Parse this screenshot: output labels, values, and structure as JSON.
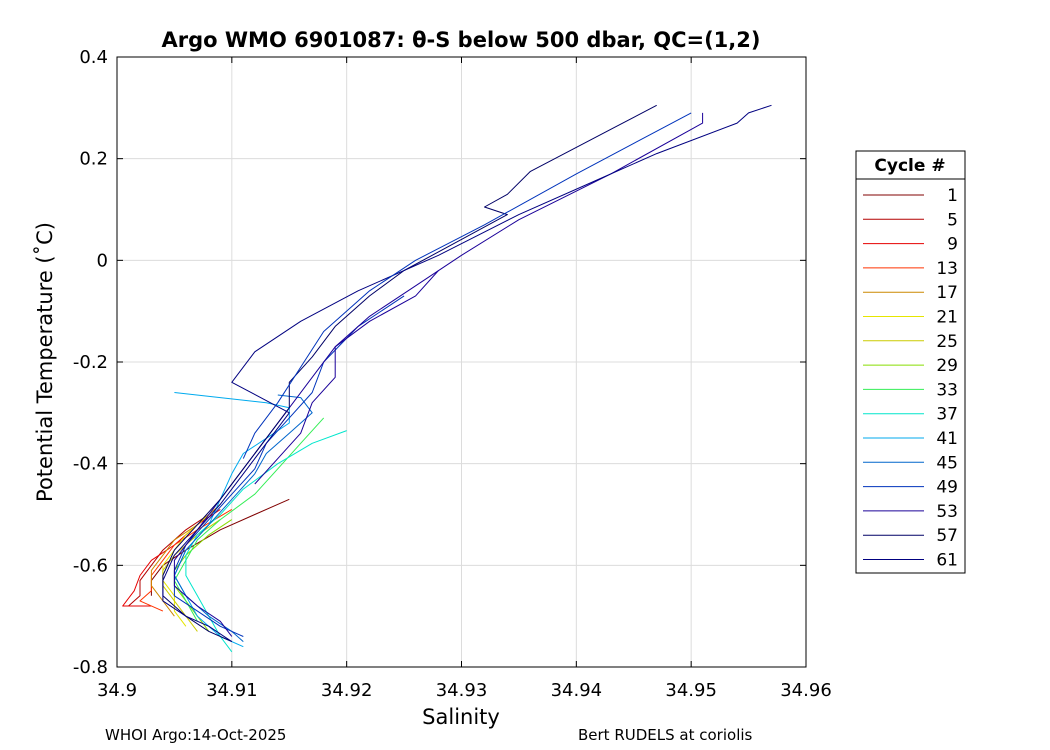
{
  "chart_data": {
    "type": "line",
    "title": "Argo WMO 6901087: θ-S below 500 dbar,  QC=(1,2)",
    "xlabel": "Salinity",
    "ylabel": "Potential Temperature (˚C)",
    "xlim": [
      34.9,
      34.96
    ],
    "ylim": [
      -0.8,
      0.4
    ],
    "xticks": [
      "34.9",
      "34.91",
      "34.92",
      "34.93",
      "34.94",
      "34.95",
      "34.96"
    ],
    "yticks": [
      "-0.8",
      "-0.6",
      "-0.4",
      "-0.2",
      "0",
      "0.2",
      "0.4"
    ],
    "grid": true,
    "legend": {
      "title": "Cycle #",
      "placement": "right",
      "entries": [
        {
          "label": "1",
          "color": "#800000"
        },
        {
          "label": "5",
          "color": "#b30000"
        },
        {
          "label": "9",
          "color": "#e60000"
        },
        {
          "label": "13",
          "color": "#ff3300"
        },
        {
          "label": "17",
          "color": "#cc8800"
        },
        {
          "label": "21",
          "color": "#e6e600"
        },
        {
          "label": "25",
          "color": "#cccc00"
        },
        {
          "label": "29",
          "color": "#88dd00"
        },
        {
          "label": "33",
          "color": "#33ee55"
        },
        {
          "label": "37",
          "color": "#00e6cc"
        },
        {
          "label": "41",
          "color": "#00aaee"
        },
        {
          "label": "45",
          "color": "#0066cc"
        },
        {
          "label": "49",
          "color": "#0033bb"
        },
        {
          "label": "53",
          "color": "#1a0099"
        },
        {
          "label": "57",
          "color": "#000066"
        },
        {
          "label": "61",
          "color": "#000080"
        }
      ]
    },
    "series": [
      {
        "color": "#800000",
        "points": [
          [
            34.915,
            -0.47
          ],
          [
            34.912,
            -0.5
          ],
          [
            34.909,
            -0.53
          ],
          [
            34.906,
            -0.57
          ],
          [
            34.904,
            -0.6
          ],
          [
            34.903,
            -0.63
          ],
          [
            34.903,
            -0.66
          ]
        ]
      },
      {
        "color": "#b30000",
        "points": [
          [
            34.908,
            -0.5
          ],
          [
            34.906,
            -0.53
          ],
          [
            34.904,
            -0.57
          ],
          [
            34.903,
            -0.6
          ],
          [
            34.902,
            -0.63
          ],
          [
            34.902,
            -0.66
          ],
          [
            34.901,
            -0.68
          ]
        ]
      },
      {
        "color": "#e60000",
        "points": [
          [
            34.909,
            -0.49
          ],
          [
            34.907,
            -0.52
          ],
          [
            34.905,
            -0.56
          ],
          [
            34.903,
            -0.59
          ],
          [
            34.902,
            -0.62
          ],
          [
            34.9015,
            -0.65
          ],
          [
            34.9005,
            -0.68
          ],
          [
            34.903,
            -0.68
          ]
        ]
      },
      {
        "color": "#ff3300",
        "points": [
          [
            34.91,
            -0.49
          ],
          [
            34.907,
            -0.53
          ],
          [
            34.905,
            -0.56
          ],
          [
            34.904,
            -0.59
          ],
          [
            34.903,
            -0.62
          ],
          [
            34.903,
            -0.65
          ],
          [
            34.902,
            -0.67
          ],
          [
            34.904,
            -0.69
          ]
        ]
      },
      {
        "color": "#cc8800",
        "points": [
          [
            34.909,
            -0.48
          ],
          [
            34.907,
            -0.52
          ],
          [
            34.905,
            -0.55
          ],
          [
            34.904,
            -0.58
          ],
          [
            34.903,
            -0.61
          ],
          [
            34.903,
            -0.64
          ],
          [
            34.904,
            -0.67
          ],
          [
            34.905,
            -0.7
          ]
        ]
      },
      {
        "color": "#e6e600",
        "points": [
          [
            34.908,
            -0.5
          ],
          [
            34.906,
            -0.54
          ],
          [
            34.905,
            -0.57
          ],
          [
            34.904,
            -0.6
          ],
          [
            34.904,
            -0.63
          ],
          [
            34.905,
            -0.66
          ],
          [
            34.905,
            -0.69
          ],
          [
            34.906,
            -0.72
          ]
        ]
      },
      {
        "color": "#cccc00",
        "points": [
          [
            34.909,
            -0.51
          ],
          [
            34.907,
            -0.54
          ],
          [
            34.905,
            -0.58
          ],
          [
            34.904,
            -0.61
          ],
          [
            34.904,
            -0.64
          ],
          [
            34.905,
            -0.67
          ],
          [
            34.906,
            -0.7
          ],
          [
            34.907,
            -0.73
          ]
        ]
      },
      {
        "color": "#88dd00",
        "points": [
          [
            34.91,
            -0.51
          ],
          [
            34.908,
            -0.54
          ],
          [
            34.906,
            -0.58
          ],
          [
            34.905,
            -0.61
          ],
          [
            34.905,
            -0.64
          ],
          [
            34.906,
            -0.67
          ],
          [
            34.907,
            -0.7
          ],
          [
            34.908,
            -0.73
          ]
        ]
      },
      {
        "color": "#33ee55",
        "points": [
          [
            34.918,
            -0.31
          ],
          [
            34.916,
            -0.36
          ],
          [
            34.914,
            -0.41
          ],
          [
            34.912,
            -0.46
          ],
          [
            34.909,
            -0.51
          ],
          [
            34.907,
            -0.55
          ],
          [
            34.906,
            -0.59
          ],
          [
            34.905,
            -0.63
          ],
          [
            34.906,
            -0.67
          ],
          [
            34.907,
            -0.71
          ]
        ]
      },
      {
        "color": "#00e6cc",
        "points": [
          [
            34.92,
            -0.335
          ],
          [
            34.917,
            -0.36
          ],
          [
            34.914,
            -0.4
          ],
          [
            34.911,
            -0.45
          ],
          [
            34.909,
            -0.5
          ],
          [
            34.907,
            -0.54
          ],
          [
            34.906,
            -0.58
          ],
          [
            34.906,
            -0.62
          ],
          [
            34.907,
            -0.66
          ],
          [
            34.908,
            -0.7
          ],
          [
            34.909,
            -0.74
          ],
          [
            34.91,
            -0.77
          ]
        ]
      },
      {
        "color": "#00aaee",
        "points": [
          [
            34.905,
            -0.26
          ],
          [
            34.909,
            -0.27
          ],
          [
            34.913,
            -0.28
          ],
          [
            34.915,
            -0.29
          ],
          [
            34.915,
            -0.32
          ],
          [
            34.913,
            -0.35
          ],
          [
            34.911,
            -0.38
          ],
          [
            34.91,
            -0.42
          ],
          [
            34.909,
            -0.47
          ],
          [
            34.908,
            -0.52
          ],
          [
            34.906,
            -0.57
          ],
          [
            34.905,
            -0.62
          ],
          [
            34.906,
            -0.66
          ],
          [
            34.907,
            -0.7
          ],
          [
            34.909,
            -0.74
          ],
          [
            34.911,
            -0.76
          ]
        ]
      },
      {
        "color": "#0066cc",
        "points": [
          [
            34.914,
            -0.265
          ],
          [
            34.916,
            -0.27
          ],
          [
            34.917,
            -0.3
          ],
          [
            34.915,
            -0.34
          ],
          [
            34.913,
            -0.38
          ],
          [
            34.912,
            -0.42
          ],
          [
            34.91,
            -0.47
          ],
          [
            34.908,
            -0.52
          ],
          [
            34.906,
            -0.57
          ],
          [
            34.905,
            -0.62
          ],
          [
            34.906,
            -0.66
          ],
          [
            34.908,
            -0.7
          ],
          [
            34.91,
            -0.73
          ],
          [
            34.911,
            -0.75
          ]
        ]
      },
      {
        "color": "#0033bb",
        "points": [
          [
            34.925,
            -0.07
          ],
          [
            34.921,
            -0.13
          ],
          [
            34.918,
            -0.2
          ],
          [
            34.917,
            -0.26
          ],
          [
            34.915,
            -0.31
          ],
          [
            34.913,
            -0.36
          ],
          [
            34.912,
            -0.41
          ],
          [
            34.91,
            -0.46
          ],
          [
            34.908,
            -0.51
          ],
          [
            34.906,
            -0.56
          ],
          [
            34.905,
            -0.61
          ],
          [
            34.905,
            -0.66
          ],
          [
            34.907,
            -0.69
          ],
          [
            34.909,
            -0.72
          ],
          [
            34.911,
            -0.74
          ]
        ]
      },
      {
        "color": "#1a0099",
        "points": [
          [
            34.951,
            0.29
          ],
          [
            34.951,
            0.27
          ],
          [
            34.943,
            0.17
          ],
          [
            34.935,
            0.08
          ],
          [
            34.93,
            0.01
          ],
          [
            34.926,
            -0.05
          ],
          [
            34.922,
            -0.11
          ],
          [
            34.919,
            -0.17
          ],
          [
            34.917,
            -0.23
          ],
          [
            34.915,
            -0.29
          ],
          [
            34.913,
            -0.35
          ],
          [
            34.911,
            -0.41
          ],
          [
            34.909,
            -0.47
          ],
          [
            34.907,
            -0.53
          ],
          [
            34.905,
            -0.59
          ],
          [
            34.905,
            -0.64
          ],
          [
            34.907,
            -0.68
          ],
          [
            34.909,
            -0.71
          ],
          [
            34.91,
            -0.74
          ]
        ]
      },
      {
        "color": "#000066",
        "points": [
          [
            34.947,
            0.305
          ],
          [
            34.936,
            0.175
          ],
          [
            34.934,
            0.13
          ],
          [
            34.932,
            0.105
          ],
          [
            34.934,
            0.09
          ],
          [
            34.925,
            -0.02
          ],
          [
            34.922,
            -0.07
          ],
          [
            34.919,
            -0.13
          ],
          [
            34.917,
            -0.19
          ],
          [
            34.915,
            -0.24
          ],
          [
            34.915,
            -0.29
          ],
          [
            34.913,
            -0.35
          ],
          [
            34.911,
            -0.41
          ],
          [
            34.909,
            -0.47
          ],
          [
            34.907,
            -0.52
          ],
          [
            34.905,
            -0.57
          ],
          [
            34.904,
            -0.62
          ],
          [
            34.904,
            -0.66
          ],
          [
            34.906,
            -0.7
          ],
          [
            34.908,
            -0.73
          ],
          [
            34.91,
            -0.75
          ]
        ]
      },
      {
        "color": "#000080",
        "points": [
          [
            34.957,
            0.305
          ],
          [
            34.955,
            0.29
          ],
          [
            34.954,
            0.27
          ],
          [
            34.947,
            0.21
          ],
          [
            34.942,
            0.16
          ],
          [
            34.935,
            0.09
          ],
          [
            34.928,
            0.01
          ],
          [
            34.921,
            -0.06
          ],
          [
            34.916,
            -0.12
          ],
          [
            34.912,
            -0.18
          ],
          [
            34.91,
            -0.24
          ],
          [
            34.915,
            -0.3
          ],
          [
            34.913,
            -0.36
          ],
          [
            34.911,
            -0.42
          ],
          [
            34.909,
            -0.48
          ],
          [
            34.907,
            -0.53
          ],
          [
            34.905,
            -0.58
          ],
          [
            34.904,
            -0.63
          ],
          [
            34.904,
            -0.67
          ],
          [
            34.906,
            -0.7
          ],
          [
            34.908,
            -0.72
          ],
          [
            34.91,
            -0.75
          ]
        ]
      },
      {
        "color": "#0033bb",
        "points": [
          [
            34.95,
            0.29
          ],
          [
            34.94,
            0.17
          ],
          [
            34.932,
            0.07
          ],
          [
            34.926,
            0.0
          ],
          [
            34.922,
            -0.06
          ],
          [
            34.918,
            -0.14
          ],
          [
            34.916,
            -0.21
          ],
          [
            34.914,
            -0.28
          ],
          [
            34.912,
            -0.34
          ],
          [
            34.911,
            -0.39
          ]
        ]
      },
      {
        "color": "#1a0099",
        "points": [
          [
            34.928,
            -0.02
          ],
          [
            34.926,
            -0.07
          ],
          [
            34.922,
            -0.12
          ],
          [
            34.919,
            -0.17
          ],
          [
            34.919,
            -0.23
          ],
          [
            34.917,
            -0.28
          ],
          [
            34.916,
            -0.34
          ],
          [
            34.914,
            -0.39
          ],
          [
            34.912,
            -0.44
          ]
        ]
      }
    ]
  },
  "footer": {
    "left": "WHOI Argo:14-Oct-2025",
    "right": "Bert RUDELS at coriolis"
  }
}
